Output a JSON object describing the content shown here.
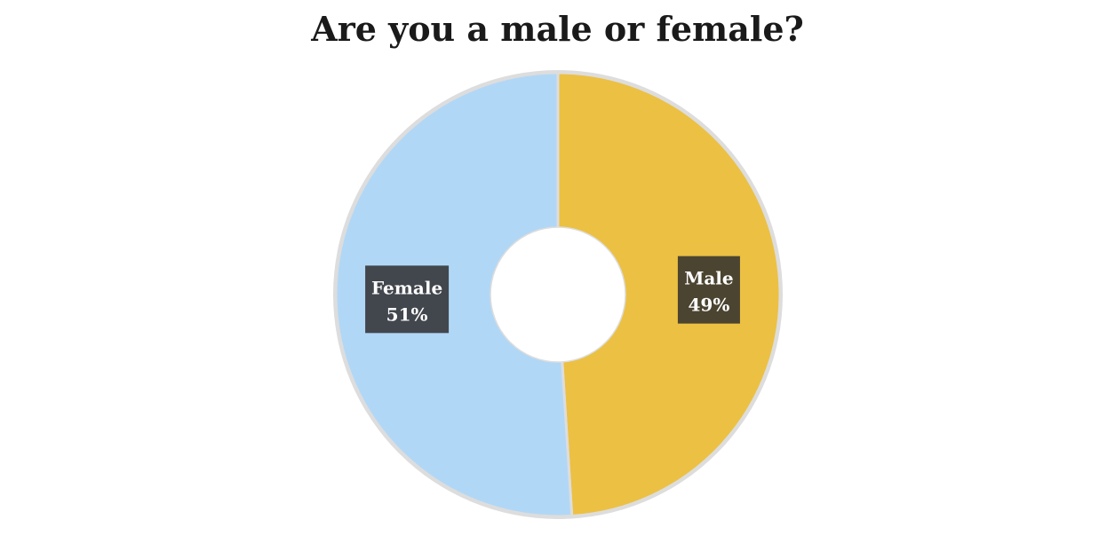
{
  "chart_data": {
    "type": "pie",
    "variant": "donut",
    "title": "Are you a male or female?",
    "slices": [
      {
        "label": "Male",
        "value": 49,
        "value_label": "49%",
        "color": "#ecc042",
        "label_bg": "#4b4431"
      },
      {
        "label": "Female",
        "value": 51,
        "value_label": "51%",
        "color": "#b1d7f6",
        "label_bg": "#42464d"
      }
    ],
    "start": "12 o'clock",
    "direction": "clockwise",
    "legend": "none"
  }
}
